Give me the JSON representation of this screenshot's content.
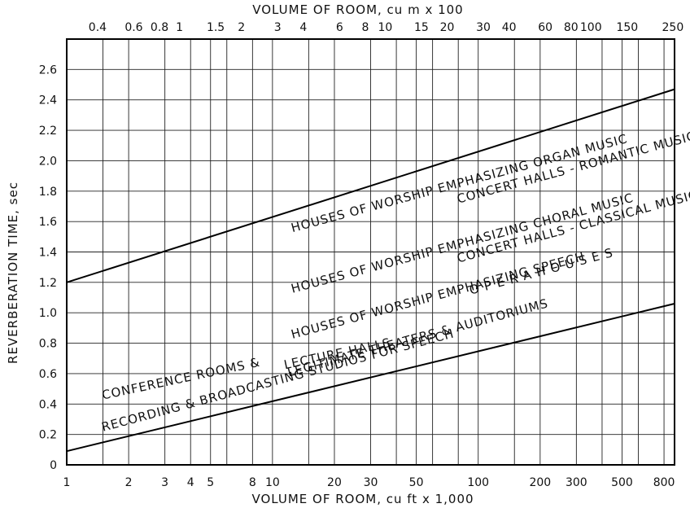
{
  "chart_data": {
    "type": "line",
    "title": "",
    "xlabel": "VOLUME OF ROOM,  cu ft x 1,000",
    "x2label": "VOLUME OF ROOM,  cu m  x 100",
    "ylabel": "REVERBERATION TIME,  sec",
    "x_scale": "log",
    "xlim": [
      1,
      900
    ],
    "ylim": [
      0,
      2.8
    ],
    "grid": true,
    "x_ticks": [
      1,
      2,
      3,
      4,
      5,
      8,
      10,
      20,
      30,
      50,
      100,
      200,
      300,
      500,
      800
    ],
    "x_tick_labels": [
      "1",
      "2",
      "3",
      "4",
      "5",
      "8",
      "10",
      "20",
      "30",
      "50",
      "100",
      "200",
      "300",
      "500",
      "800"
    ],
    "x_grid_values": [
      1,
      1.5,
      2,
      3,
      4,
      5,
      6,
      8,
      10,
      15,
      20,
      30,
      40,
      50,
      60,
      80,
      100,
      150,
      200,
      300,
      400,
      500,
      600,
      800,
      900
    ],
    "x2_ticks": [
      0.4,
      0.6,
      0.8,
      1,
      1.5,
      2,
      3,
      4,
      6,
      8,
      10,
      15,
      20,
      30,
      40,
      60,
      80,
      100,
      150,
      250
    ],
    "x2_tick_labels": [
      "0.4",
      "0.6",
      "0.8",
      "1",
      "1.5",
      "2",
      "3",
      "4",
      "6",
      "8",
      "10",
      "15",
      "20",
      "30",
      "40",
      "60",
      "80",
      "100",
      "150",
      "250"
    ],
    "y_ticks": [
      0,
      0.2,
      0.4,
      0.6,
      0.8,
      1.0,
      1.2,
      1.4,
      1.6,
      1.8,
      2.0,
      2.2,
      2.4,
      2.6
    ],
    "y_tick_labels": [
      "0",
      "0.2",
      "0.4",
      "0.6",
      "0.8",
      "1.0",
      "1.2",
      "1.4",
      "1.6",
      "1.8",
      "2.0",
      "2.2",
      "2.4",
      "2.6"
    ],
    "series": [
      {
        "x": [
          1,
          900
        ],
        "y": [
          1.2,
          2.47
        ]
      },
      {
        "x": [
          1,
          900
        ],
        "y": [
          0.09,
          1.06
        ]
      }
    ],
    "annotations": [
      {
        "text": "HOUSES OF WORSHIP EMPHASIZING ORGAN MUSIC",
        "x": 12.5,
        "y": 1.53,
        "angle": -15
      },
      {
        "text": "CONCERT HALLS - ROMANTIC MUSIC",
        "x": 80,
        "y": 1.72,
        "angle": -15
      },
      {
        "text": "HOUSES OF WORSHIP EMPHASIZING CHORAL MUSIC",
        "x": 12.5,
        "y": 1.13,
        "angle": -15
      },
      {
        "text": "CONCERT HALLS - CLASSICAL MUSIC",
        "x": 80,
        "y": 1.33,
        "angle": -15
      },
      {
        "text": "HOUSES OF WORSHIP EMPHASIZING SPEECH",
        "x": 12.5,
        "y": 0.83,
        "angle": -15
      },
      {
        "text": "O P E R A   H O U S E S",
        "x": 92,
        "y": 1.12,
        "angle": -15
      },
      {
        "text": "LEGITIMATE THEATERS & AUDITORIUMS",
        "x": 12,
        "y": 0.58,
        "angle": -15
      },
      {
        "text": "CONFERENCE ROOMS &",
        "x": 1.5,
        "y": 0.43,
        "angle": -12
      },
      {
        "text": "LECTURE HALLS",
        "x": 11.5,
        "y": 0.63,
        "angle": -12
      },
      {
        "text": "RECORDING & BROADCASTING STUDIOS FOR SPEECH",
        "x": 1.5,
        "y": 0.22,
        "angle": -15
      }
    ]
  }
}
